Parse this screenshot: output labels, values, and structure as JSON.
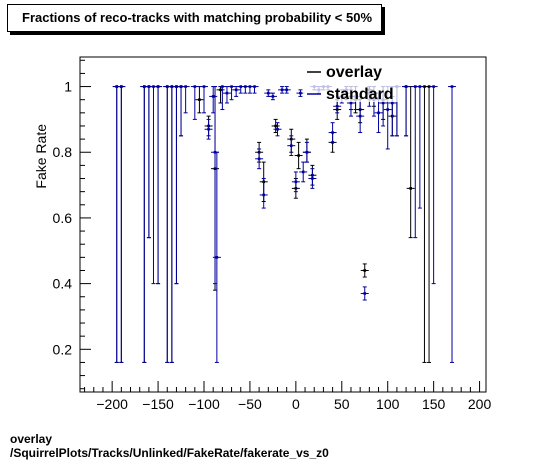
{
  "chart_data": {
    "type": "scatter",
    "title": "Fractions of reco-tracks with matching probability < 50%",
    "xlabel": "",
    "ylabel": "Fake Rate",
    "xlim": [
      -235,
      207
    ],
    "ylim": [
      0.07,
      1.09
    ],
    "xticks": [
      -200,
      -150,
      -100,
      -50,
      0,
      50,
      100,
      150,
      200
    ],
    "yticks": [
      0.2,
      0.4,
      0.6,
      0.8,
      1
    ],
    "grid": false,
    "legend_position": "top-right",
    "series": [
      {
        "name": "overlay",
        "color": "#000000",
        "points": [
          {
            "x": -195,
            "y": 1.0,
            "lo": 0.16,
            "hi": 1.0
          },
          {
            "x": -190,
            "y": 1.0,
            "lo": 0.16,
            "hi": 1.0
          },
          {
            "x": -165,
            "y": 1.0,
            "lo": 0.16,
            "hi": 1.0
          },
          {
            "x": -160,
            "y": 1.0,
            "lo": 0.54,
            "hi": 1.0
          },
          {
            "x": -150,
            "y": 1.0,
            "lo": 0.4,
            "hi": 1.0
          },
          {
            "x": -140,
            "y": 1.0,
            "lo": 0.16,
            "hi": 1.0
          },
          {
            "x": -135,
            "y": 1.0,
            "lo": 0.16,
            "hi": 1.0
          },
          {
            "x": -130,
            "y": 1.0,
            "lo": 0.4,
            "hi": 1.0
          },
          {
            "x": -125,
            "y": 1.0,
            "lo": 0.85,
            "hi": 1.0
          },
          {
            "x": -105,
            "y": 0.96,
            "lo": 0.92,
            "hi": 1.0
          },
          {
            "x": -95,
            "y": 0.88,
            "lo": 0.85,
            "hi": 0.91
          },
          {
            "x": -88,
            "y": 0.75,
            "lo": 0.38,
            "hi": 1.0
          },
          {
            "x": -82,
            "y": 0.99,
            "lo": 0.95,
            "hi": 1.0
          },
          {
            "x": -40,
            "y": 0.8,
            "lo": 0.77,
            "hi": 0.83
          },
          {
            "x": -35,
            "y": 0.71,
            "lo": 0.65,
            "hi": 0.77
          },
          {
            "x": -22,
            "y": 0.88,
            "lo": 0.86,
            "hi": 0.9
          },
          {
            "x": -5,
            "y": 0.84,
            "lo": 0.8,
            "hi": 0.87
          },
          {
            "x": 0,
            "y": 0.69,
            "lo": 0.66,
            "hi": 0.72
          },
          {
            "x": 3,
            "y": 0.79,
            "lo": 0.75,
            "hi": 0.83
          },
          {
            "x": 12,
            "y": 0.8,
            "lo": 0.77,
            "hi": 0.84
          },
          {
            "x": 18,
            "y": 0.73,
            "lo": 0.7,
            "hi": 0.76
          },
          {
            "x": 40,
            "y": 0.83,
            "lo": 0.8,
            "hi": 0.86
          },
          {
            "x": 45,
            "y": 0.93,
            "lo": 0.9,
            "hi": 0.96
          },
          {
            "x": 55,
            "y": 0.98,
            "lo": 0.96,
            "hi": 1.0
          },
          {
            "x": 60,
            "y": 0.97,
            "lo": 0.93,
            "hi": 1.0
          },
          {
            "x": 65,
            "y": 0.96,
            "lo": 0.92,
            "hi": 1.0
          },
          {
            "x": 70,
            "y": 0.93,
            "lo": 0.89,
            "hi": 0.97
          },
          {
            "x": 75,
            "y": 0.44,
            "lo": 0.42,
            "hi": 0.46
          },
          {
            "x": 80,
            "y": 0.99,
            "lo": 0.96,
            "hi": 1.0
          },
          {
            "x": 85,
            "y": 0.98,
            "lo": 0.94,
            "hi": 1.0
          },
          {
            "x": 95,
            "y": 0.96,
            "lo": 0.9,
            "hi": 1.0
          },
          {
            "x": 105,
            "y": 0.91,
            "lo": 0.85,
            "hi": 0.97
          },
          {
            "x": 110,
            "y": 1.0,
            "lo": 0.85,
            "hi": 1.0
          },
          {
            "x": 120,
            "y": 1.0,
            "lo": 0.85,
            "hi": 1.0
          },
          {
            "x": 125,
            "y": 0.69,
            "lo": 0.54,
            "hi": 1.0
          },
          {
            "x": 140,
            "y": 1.0,
            "lo": 0.16,
            "hi": 1.0
          },
          {
            "x": 145,
            "y": 1.0,
            "lo": 0.16,
            "hi": 1.0
          }
        ]
      },
      {
        "name": "standard",
        "color": "#0000a0",
        "points": [
          {
            "x": -195,
            "y": 1.0,
            "lo": 0.16,
            "hi": 1.0
          },
          {
            "x": -190,
            "y": 1.0,
            "lo": 0.16,
            "hi": 1.0
          },
          {
            "x": -165,
            "y": 1.0,
            "lo": 0.16,
            "hi": 1.0
          },
          {
            "x": -160,
            "y": 1.0,
            "lo": 0.54,
            "hi": 1.0
          },
          {
            "x": -155,
            "y": 1.0,
            "lo": 0.4,
            "hi": 1.0
          },
          {
            "x": -150,
            "y": 1.0,
            "lo": 0.4,
            "hi": 1.0
          },
          {
            "x": -140,
            "y": 1.0,
            "lo": 0.16,
            "hi": 1.0
          },
          {
            "x": -135,
            "y": 1.0,
            "lo": 0.16,
            "hi": 1.0
          },
          {
            "x": -130,
            "y": 1.0,
            "lo": 0.4,
            "hi": 1.0
          },
          {
            "x": -125,
            "y": 1.0,
            "lo": 0.85,
            "hi": 1.0
          },
          {
            "x": -120,
            "y": 1.0,
            "lo": 0.92,
            "hi": 1.0
          },
          {
            "x": -110,
            "y": 1.0,
            "lo": 0.9,
            "hi": 1.0
          },
          {
            "x": -100,
            "y": 1.0,
            "lo": 0.92,
            "hi": 1.0
          },
          {
            "x": -95,
            "y": 0.87,
            "lo": 0.84,
            "hi": 0.9
          },
          {
            "x": -90,
            "y": 0.97,
            "lo": 0.92,
            "hi": 1.0
          },
          {
            "x": -88,
            "y": 0.8,
            "lo": 0.4,
            "hi": 1.0
          },
          {
            "x": -86,
            "y": 0.48,
            "lo": 0.16,
            "hi": 0.8
          },
          {
            "x": -80,
            "y": 1.0,
            "lo": 0.93,
            "hi": 1.0
          },
          {
            "x": -75,
            "y": 0.98,
            "lo": 0.95,
            "hi": 1.0
          },
          {
            "x": -70,
            "y": 1.0,
            "lo": 0.96,
            "hi": 1.0
          },
          {
            "x": -65,
            "y": 0.99,
            "lo": 0.97,
            "hi": 1.0
          },
          {
            "x": -60,
            "y": 1.0,
            "lo": 0.98,
            "hi": 1.0
          },
          {
            "x": -55,
            "y": 1.0,
            "lo": 0.98,
            "hi": 1.0
          },
          {
            "x": -50,
            "y": 1.0,
            "lo": 0.98,
            "hi": 1.0
          },
          {
            "x": -45,
            "y": 1.0,
            "lo": 0.98,
            "hi": 1.0
          },
          {
            "x": -40,
            "y": 0.78,
            "lo": 0.75,
            "hi": 0.81
          },
          {
            "x": -35,
            "y": 0.67,
            "lo": 0.63,
            "hi": 0.72
          },
          {
            "x": -30,
            "y": 0.98,
            "lo": 0.97,
            "hi": 0.99
          },
          {
            "x": -25,
            "y": 0.97,
            "lo": 0.96,
            "hi": 0.98
          },
          {
            "x": -20,
            "y": 0.87,
            "lo": 0.85,
            "hi": 0.89
          },
          {
            "x": -15,
            "y": 0.99,
            "lo": 0.98,
            "hi": 1.0
          },
          {
            "x": -10,
            "y": 0.99,
            "lo": 0.98,
            "hi": 1.0
          },
          {
            "x": -5,
            "y": 0.82,
            "lo": 0.79,
            "hi": 0.85
          },
          {
            "x": 0,
            "y": 0.71,
            "lo": 0.68,
            "hi": 0.74
          },
          {
            "x": 5,
            "y": 0.98,
            "lo": 0.97,
            "hi": 0.99
          },
          {
            "x": 8,
            "y": 0.74,
            "lo": 0.71,
            "hi": 0.77
          },
          {
            "x": 12,
            "y": 0.8,
            "lo": 0.77,
            "hi": 0.83
          },
          {
            "x": 18,
            "y": 0.72,
            "lo": 0.69,
            "hi": 0.75
          },
          {
            "x": 20,
            "y": 1.0,
            "lo": 0.99,
            "hi": 1.0
          },
          {
            "x": 25,
            "y": 0.99,
            "lo": 0.98,
            "hi": 1.0
          },
          {
            "x": 30,
            "y": 1.0,
            "lo": 0.99,
            "hi": 1.0
          },
          {
            "x": 35,
            "y": 1.0,
            "lo": 0.99,
            "hi": 1.0
          },
          {
            "x": 40,
            "y": 0.86,
            "lo": 0.83,
            "hi": 0.89
          },
          {
            "x": 45,
            "y": 0.94,
            "lo": 0.92,
            "hi": 0.96
          },
          {
            "x": 50,
            "y": 0.97,
            "lo": 0.95,
            "hi": 0.99
          },
          {
            "x": 55,
            "y": 0.99,
            "lo": 0.97,
            "hi": 1.0
          },
          {
            "x": 60,
            "y": 0.95,
            "lo": 0.91,
            "hi": 0.99
          },
          {
            "x": 65,
            "y": 0.97,
            "lo": 0.93,
            "hi": 1.0
          },
          {
            "x": 70,
            "y": 0.91,
            "lo": 0.86,
            "hi": 0.96
          },
          {
            "x": 75,
            "y": 0.37,
            "lo": 0.35,
            "hi": 0.39
          },
          {
            "x": 80,
            "y": 0.98,
            "lo": 0.94,
            "hi": 1.0
          },
          {
            "x": 85,
            "y": 0.96,
            "lo": 0.91,
            "hi": 1.0
          },
          {
            "x": 90,
            "y": 0.92,
            "lo": 0.86,
            "hi": 0.98
          },
          {
            "x": 95,
            "y": 0.95,
            "lo": 0.88,
            "hi": 1.0
          },
          {
            "x": 100,
            "y": 0.93,
            "lo": 0.81,
            "hi": 1.0
          },
          {
            "x": 105,
            "y": 0.95,
            "lo": 0.85,
            "hi": 1.0
          },
          {
            "x": 110,
            "y": 1.0,
            "lo": 0.85,
            "hi": 1.0
          },
          {
            "x": 120,
            "y": 1.0,
            "lo": 0.85,
            "hi": 1.0
          },
          {
            "x": 130,
            "y": 1.0,
            "lo": 0.54,
            "hi": 1.0
          },
          {
            "x": 135,
            "y": 1.0,
            "lo": 0.63,
            "hi": 1.0
          },
          {
            "x": 150,
            "y": 1.0,
            "lo": 0.4,
            "hi": 1.0
          },
          {
            "x": 170,
            "y": 1.0,
            "lo": 0.16,
            "hi": 1.0
          }
        ]
      }
    ]
  },
  "footer": {
    "line1": "overlay",
    "line2": "/SquirrelPlots/Tracks/Unlinked/FakeRate/fakerate_vs_z0"
  }
}
